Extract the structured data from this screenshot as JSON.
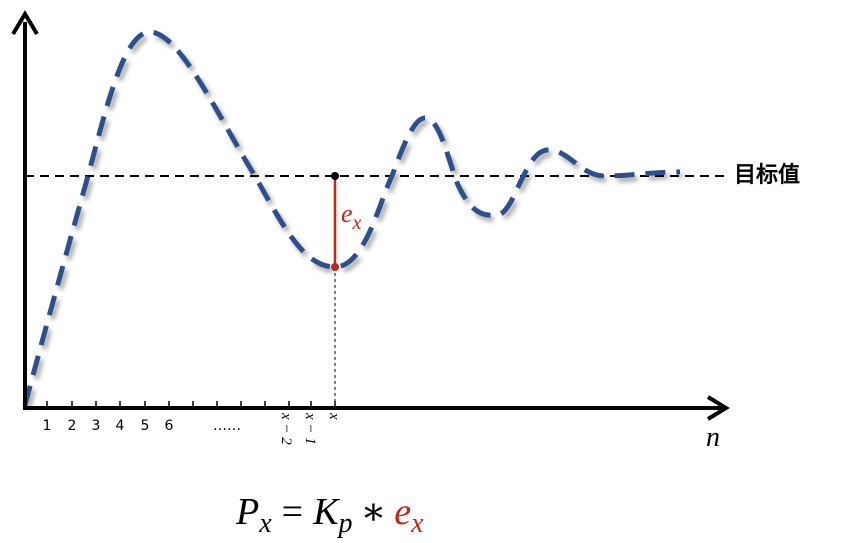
{
  "target_label": "目标值",
  "axis_label": "n",
  "tick_labels": [
    "1",
    "2",
    "3",
    "4",
    "5",
    "6",
    "……",
    "x − 2",
    "x − 1",
    "x"
  ],
  "error_label": {
    "base": "e",
    "sub": "x"
  },
  "formula": {
    "lhs": {
      "base": "P",
      "sub": "x"
    },
    "equals": "=",
    "gain": {
      "base": "K",
      "sub": "p"
    },
    "times": "∗",
    "error": {
      "base": "e",
      "sub": "x"
    }
  }
}
